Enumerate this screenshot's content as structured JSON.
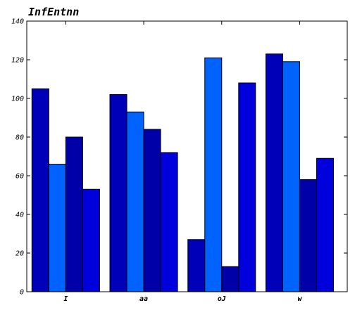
{
  "chart_data": {
    "type": "bar",
    "title": "InfEntnn",
    "xlabel": "",
    "ylabel": "",
    "categories": [
      "I",
      "aa",
      "oJ",
      "w"
    ],
    "series": [
      {
        "values": [
          105,
          102,
          27,
          123
        ],
        "color": "#0000b8"
      },
      {
        "values": [
          66,
          93,
          121,
          119
        ],
        "color": "#0062ff"
      },
      {
        "values": [
          80,
          84,
          13,
          58
        ],
        "color": "#0000a8"
      },
      {
        "values": [
          53,
          72,
          108,
          69
        ],
        "color": "#0000dd"
      }
    ],
    "ylim": [
      0,
      140
    ],
    "yticks": [
      0,
      20,
      40,
      60,
      80,
      100,
      120,
      140
    ],
    "grid": false,
    "legend": "none"
  }
}
